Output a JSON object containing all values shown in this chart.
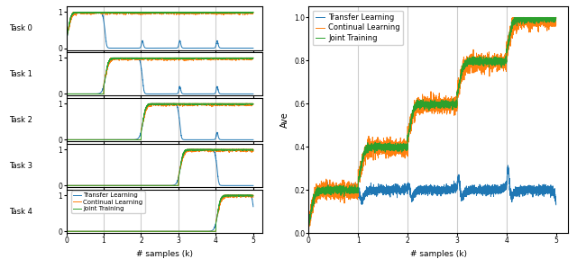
{
  "n_tasks": 5,
  "colors": {
    "transfer": "#1f77b4",
    "continual": "#ff7f0e",
    "joint": "#2ca02c"
  },
  "legend_labels": [
    "Transfer Learning",
    "Continual Learning",
    "Joint Training"
  ],
  "xlabel": "# samples (k)",
  "ylabel_right": "Ave",
  "task_labels": [
    "Task 0",
    "Task 1",
    "Task 2",
    "Task 3",
    "Task 4"
  ],
  "vline_color": "#cccccc",
  "ylim_tasks": [
    -0.05,
    1.15
  ],
  "ylim_ave": [
    0.0,
    1.05
  ],
  "yticks_tasks": [
    0,
    1
  ],
  "yticks_ave": [
    0.0,
    0.2,
    0.4,
    0.6,
    0.8,
    1.0
  ],
  "xticks": [
    0,
    1,
    2,
    3,
    4,
    5
  ],
  "seed": 42
}
